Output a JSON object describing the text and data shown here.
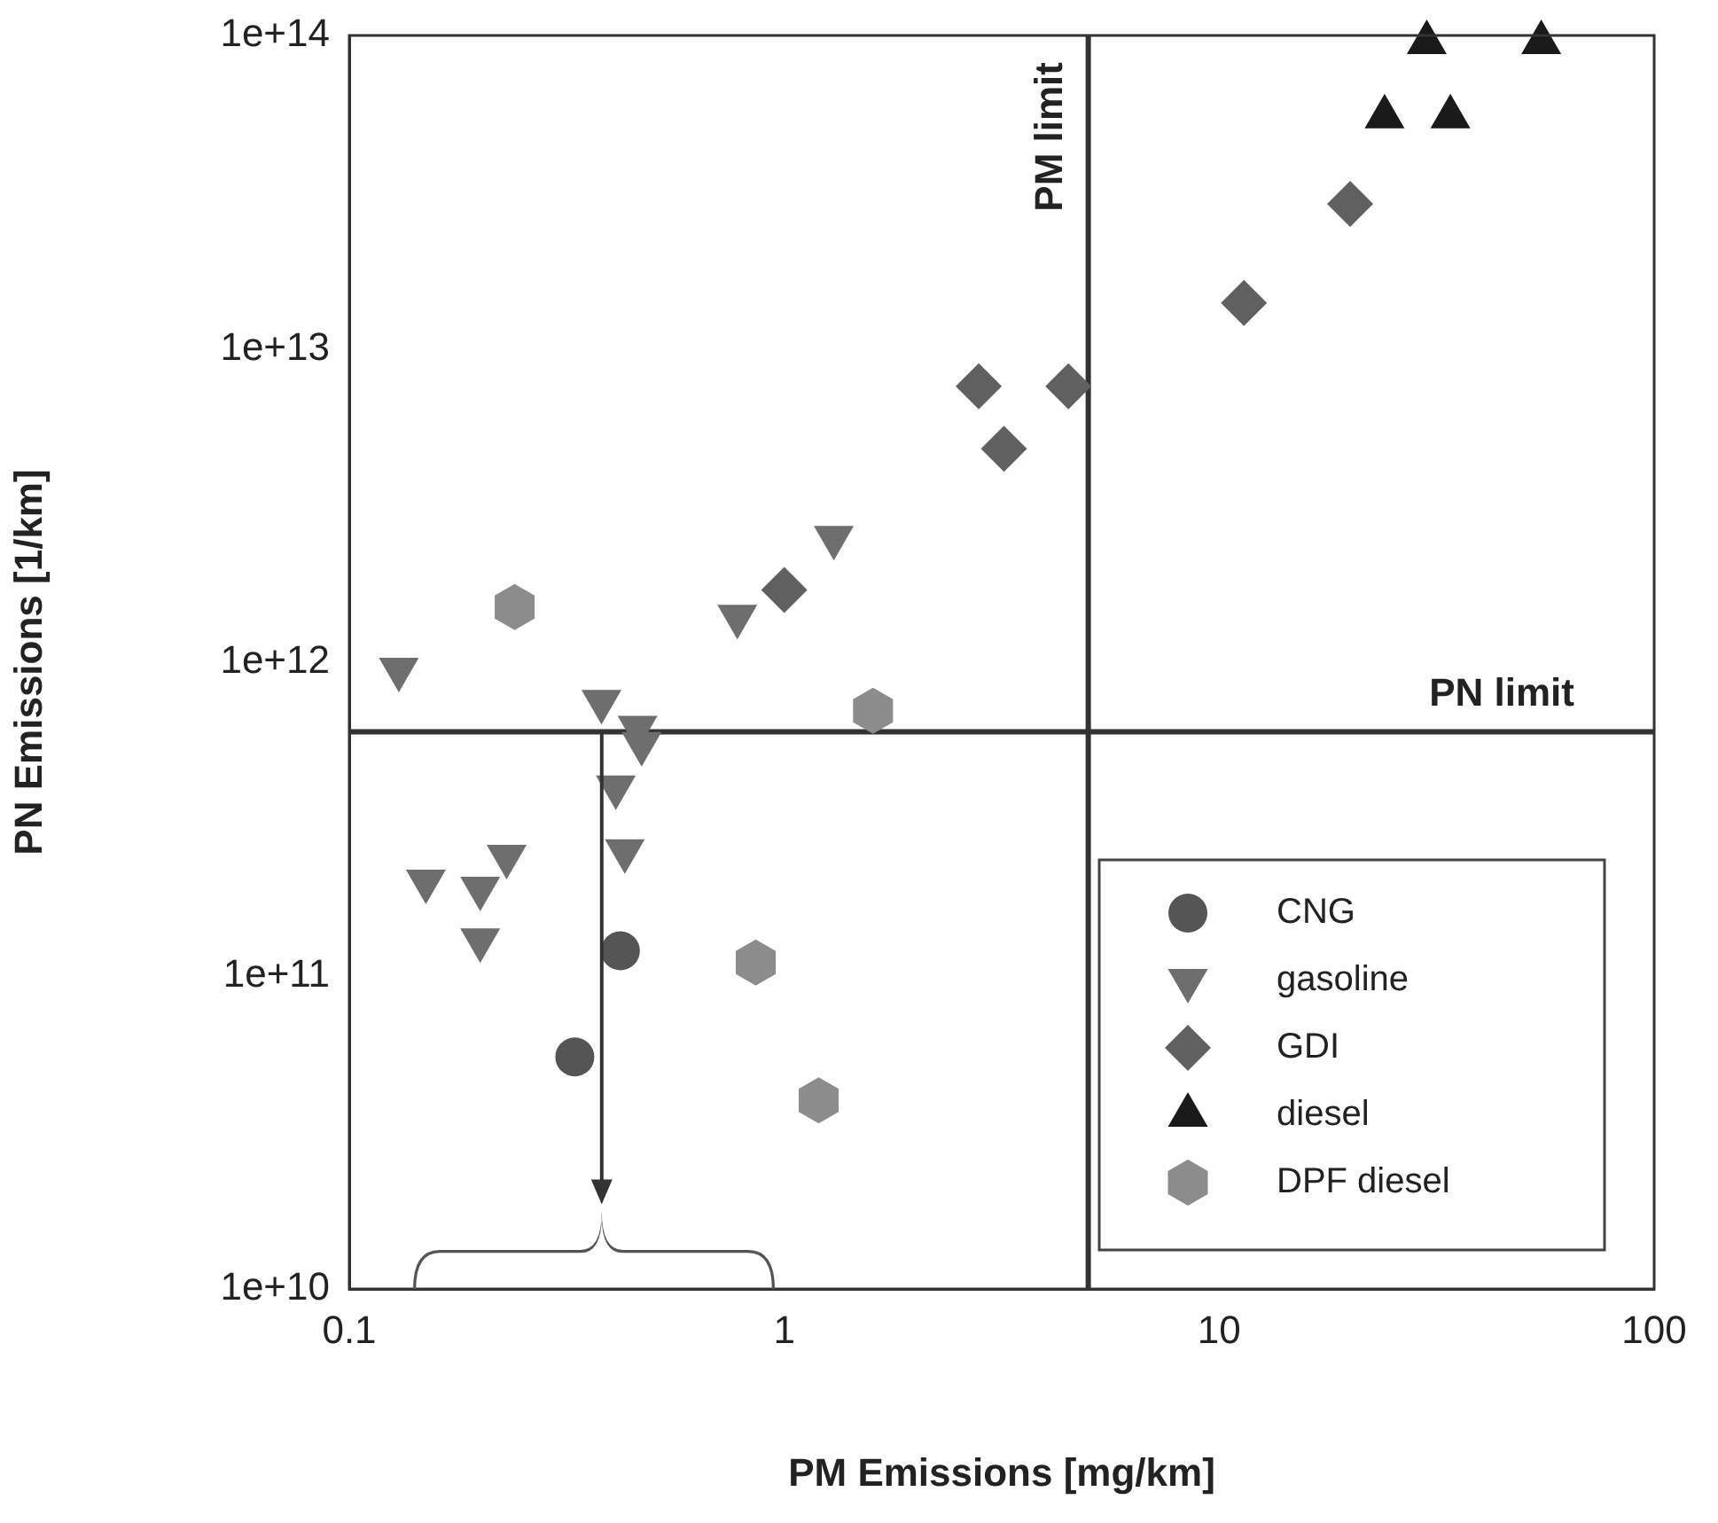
{
  "chart_data": {
    "type": "scatter",
    "xlabel": "PM Emissions [mg/km]",
    "ylabel": "PN Emissions [1/km]",
    "log": "xy",
    "grid": false,
    "legend": "bottom right",
    "xlim": [
      0.1,
      100
    ],
    "xticks": [
      0.1,
      1,
      10,
      100
    ],
    "ylim": [
      10000000000.0,
      100000000000000.0
    ],
    "yticks": [
      {
        "value": 10000000000.0,
        "label": "1e+10"
      },
      {
        "value": 100000000000.0,
        "label": "1e+11"
      },
      {
        "value": 1000000000000.0,
        "label": "1e+12"
      },
      {
        "value": 10000000000000.0,
        "label": "1e+13"
      },
      {
        "value": 100000000000000.0,
        "label": "1e+14"
      }
    ],
    "series": [
      {
        "name": "CNG",
        "color": "#555555",
        "marker": "circle",
        "x": [
          0.42,
          0.33
        ],
        "values": [
          120000000000.0,
          55000000000.0
        ]
      },
      {
        "name": "gasoline",
        "color": "#6e6e6e",
        "marker": "triangle-down",
        "x": [
          0.13,
          0.38,
          0.46,
          0.47,
          0.41,
          0.43,
          0.15,
          0.2,
          0.23,
          0.2,
          0.78,
          1.3
        ],
        "values": [
          950000000000.0,
          750000000000.0,
          620000000000.0,
          550000000000.0,
          400000000000.0,
          250000000000.0,
          200000000000.0,
          190000000000.0,
          240000000000.0,
          130000000000.0,
          1400000000000.0,
          2500000000000.0
        ]
      },
      {
        "name": "GDI",
        "color": "#606060",
        "marker": "diamond",
        "x": [
          1,
          2.8,
          3.2,
          4.5,
          11.4,
          20
        ],
        "values": [
          1700000000000.0,
          7600000000000.0,
          4800000000000.0,
          7600000000000.0,
          14000000000000.0,
          29000000000000.0
        ]
      },
      {
        "name": "diesel",
        "color": "#1a1a1a",
        "marker": "triangle",
        "x": [
          30,
          55,
          24,
          34
        ],
        "values": [
          95000000000000.0,
          95000000000000.0,
          55000000000000.0,
          55000000000000.0
        ]
      },
      {
        "name": "DPF diesel",
        "color": "#8c8c8c",
        "x": [
          0.24,
          1.6,
          0.86,
          1.2
        ],
        "values": [
          1500000000000.0,
          700000000000.0,
          110000000000.0,
          40000000000.0
        ]
      }
    ],
    "ref_lines": [
      {
        "axis": "x",
        "value": 5,
        "label": "PM limit"
      },
      {
        "axis": "y",
        "value": 600000000000.0,
        "label": "PN limit"
      }
    ]
  }
}
